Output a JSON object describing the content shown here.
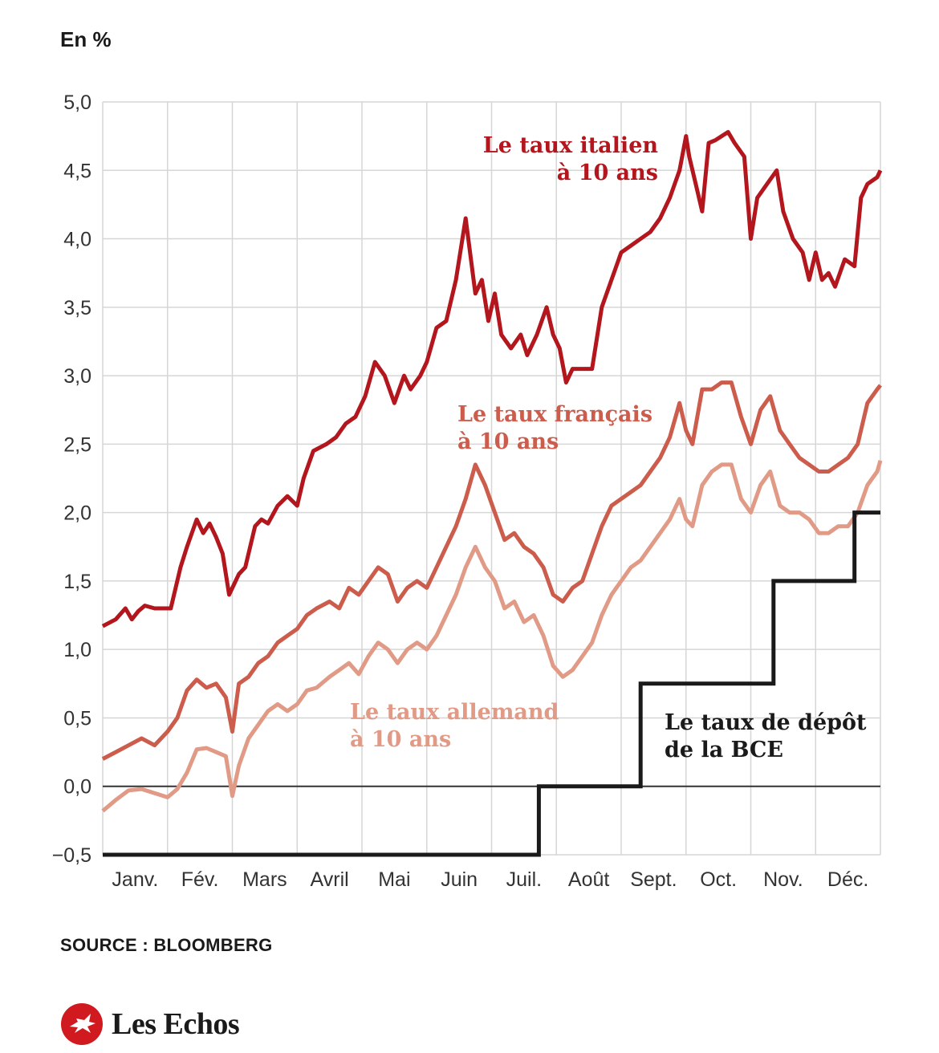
{
  "unit_label": "En %",
  "source": "SOURCE : BLOOMBERG",
  "brand": "Les Echos",
  "chart_data": {
    "type": "line",
    "ylim": [
      -0.5,
      5.0
    ],
    "y_ticks": [
      -0.5,
      0.0,
      0.5,
      1.0,
      1.5,
      2.0,
      2.5,
      3.0,
      3.5,
      4.0,
      4.5,
      5.0
    ],
    "y_tick_labels": [
      "−0,5",
      "0,0",
      "0,5",
      "1,0",
      "1,5",
      "2,0",
      "2,5",
      "3,0",
      "3,5",
      "4,0",
      "4,5",
      "5,0"
    ],
    "x_range": [
      0,
      12
    ],
    "x_tick_labels": [
      "Janv.",
      "Fév.",
      "Mars",
      "Avril",
      "Mai",
      "Juin",
      "Juil.",
      "Août",
      "Sept.",
      "Oct.",
      "Nov.",
      "Déc."
    ],
    "grid": true,
    "series": [
      {
        "name": "Le taux italien à 10 ans",
        "label_lines": [
          "Le taux italien",
          "à 10 ans"
        ],
        "color": "#b3161c",
        "x": [
          0.0,
          0.2,
          0.35,
          0.45,
          0.55,
          0.65,
          0.8,
          0.9,
          1.05,
          1.2,
          1.3,
          1.45,
          1.55,
          1.65,
          1.75,
          1.85,
          1.95,
          2.1,
          2.2,
          2.35,
          2.45,
          2.55,
          2.7,
          2.85,
          3.0,
          3.1,
          3.25,
          3.45,
          3.6,
          3.75,
          3.9,
          4.05,
          4.2,
          4.35,
          4.5,
          4.65,
          4.75,
          4.9,
          5.0,
          5.15,
          5.3,
          5.45,
          5.6,
          5.75,
          5.85,
          5.95,
          6.05,
          6.15,
          6.3,
          6.45,
          6.55,
          6.7,
          6.85,
          6.95,
          7.05,
          7.15,
          7.25,
          7.4,
          7.55,
          7.7,
          7.85,
          8.0,
          8.15,
          8.3,
          8.45,
          8.6,
          8.75,
          8.9,
          9.0,
          9.05,
          9.15,
          9.25,
          9.35,
          9.45,
          9.55,
          9.65,
          9.75,
          9.9,
          10.0,
          10.1,
          10.25,
          10.4,
          10.5,
          10.65,
          10.8,
          10.9,
          11.0,
          11.1,
          11.2,
          11.3,
          11.45,
          11.6,
          11.7,
          11.8,
          11.95,
          12.0
        ],
        "y": [
          1.17,
          1.22,
          1.3,
          1.22,
          1.28,
          1.32,
          1.3,
          1.3,
          1.3,
          1.6,
          1.75,
          1.95,
          1.85,
          1.92,
          1.82,
          1.7,
          1.4,
          1.55,
          1.6,
          1.9,
          1.95,
          1.92,
          2.05,
          2.12,
          2.05,
          2.25,
          2.45,
          2.5,
          2.55,
          2.65,
          2.7,
          2.85,
          3.1,
          3.0,
          2.8,
          3.0,
          2.9,
          3.0,
          3.1,
          3.35,
          3.4,
          3.7,
          4.15,
          3.6,
          3.7,
          3.4,
          3.6,
          3.3,
          3.2,
          3.3,
          3.15,
          3.3,
          3.5,
          3.3,
          3.2,
          2.95,
          3.05,
          3.05,
          3.05,
          3.5,
          3.7,
          3.9,
          3.95,
          4.0,
          4.05,
          4.15,
          4.3,
          4.5,
          4.75,
          4.6,
          4.4,
          4.2,
          4.7,
          4.72,
          4.75,
          4.78,
          4.7,
          4.6,
          4.0,
          4.3,
          4.4,
          4.5,
          4.2,
          4.0,
          3.9,
          3.7,
          3.9,
          3.7,
          3.75,
          3.65,
          3.85,
          3.8,
          4.3,
          4.4,
          4.45,
          4.5
        ]
      },
      {
        "name": "Le taux français à 10 ans",
        "label_lines": [
          "Le taux français",
          "à 10 ans"
        ],
        "color": "#cc5c4b",
        "x": [
          0.0,
          0.2,
          0.4,
          0.6,
          0.8,
          1.0,
          1.15,
          1.3,
          1.45,
          1.6,
          1.75,
          1.9,
          2.0,
          2.1,
          2.25,
          2.4,
          2.55,
          2.7,
          2.85,
          3.0,
          3.15,
          3.3,
          3.5,
          3.65,
          3.8,
          3.95,
          4.1,
          4.25,
          4.4,
          4.55,
          4.7,
          4.85,
          5.0,
          5.15,
          5.3,
          5.45,
          5.6,
          5.75,
          5.9,
          6.05,
          6.2,
          6.35,
          6.5,
          6.65,
          6.8,
          6.95,
          7.1,
          7.25,
          7.4,
          7.55,
          7.7,
          7.85,
          8.0,
          8.15,
          8.3,
          8.45,
          8.6,
          8.75,
          8.9,
          9.0,
          9.1,
          9.25,
          9.4,
          9.55,
          9.7,
          9.85,
          10.0,
          10.15,
          10.3,
          10.45,
          10.6,
          10.75,
          10.9,
          11.05,
          11.2,
          11.35,
          11.5,
          11.65,
          11.8,
          11.95,
          12.0
        ],
        "y": [
          0.2,
          0.25,
          0.3,
          0.35,
          0.3,
          0.4,
          0.5,
          0.7,
          0.78,
          0.72,
          0.75,
          0.65,
          0.4,
          0.75,
          0.8,
          0.9,
          0.95,
          1.05,
          1.1,
          1.15,
          1.25,
          1.3,
          1.35,
          1.3,
          1.45,
          1.4,
          1.5,
          1.6,
          1.55,
          1.35,
          1.45,
          1.5,
          1.45,
          1.6,
          1.75,
          1.9,
          2.1,
          2.35,
          2.2,
          2.0,
          1.8,
          1.85,
          1.75,
          1.7,
          1.6,
          1.4,
          1.35,
          1.45,
          1.5,
          1.7,
          1.9,
          2.05,
          2.1,
          2.15,
          2.2,
          2.3,
          2.4,
          2.55,
          2.8,
          2.6,
          2.5,
          2.9,
          2.9,
          2.95,
          2.95,
          2.7,
          2.5,
          2.75,
          2.85,
          2.6,
          2.5,
          2.4,
          2.35,
          2.3,
          2.3,
          2.35,
          2.4,
          2.5,
          2.8,
          2.9,
          2.93
        ]
      },
      {
        "name": "Le taux allemand à 10 ans",
        "label_lines": [
          "Le taux allemand",
          "à 10 ans"
        ],
        "color": "#e09a86",
        "x": [
          0.0,
          0.2,
          0.4,
          0.6,
          0.8,
          1.0,
          1.15,
          1.3,
          1.45,
          1.6,
          1.75,
          1.9,
          2.0,
          2.1,
          2.25,
          2.4,
          2.55,
          2.7,
          2.85,
          3.0,
          3.15,
          3.3,
          3.5,
          3.65,
          3.8,
          3.95,
          4.1,
          4.25,
          4.4,
          4.55,
          4.7,
          4.85,
          5.0,
          5.15,
          5.3,
          5.45,
          5.6,
          5.75,
          5.9,
          6.05,
          6.2,
          6.35,
          6.5,
          6.65,
          6.8,
          6.95,
          7.1,
          7.25,
          7.4,
          7.55,
          7.7,
          7.85,
          8.0,
          8.15,
          8.3,
          8.45,
          8.6,
          8.75,
          8.9,
          9.0,
          9.1,
          9.25,
          9.4,
          9.55,
          9.7,
          9.85,
          10.0,
          10.15,
          10.3,
          10.45,
          10.6,
          10.75,
          10.9,
          11.05,
          11.2,
          11.35,
          11.5,
          11.65,
          11.8,
          11.95,
          12.0
        ],
        "y": [
          -0.18,
          -0.1,
          -0.03,
          -0.02,
          -0.05,
          -0.08,
          -0.02,
          0.1,
          0.27,
          0.28,
          0.25,
          0.22,
          -0.07,
          0.15,
          0.35,
          0.45,
          0.55,
          0.6,
          0.55,
          0.6,
          0.7,
          0.72,
          0.8,
          0.85,
          0.9,
          0.82,
          0.95,
          1.05,
          1.0,
          0.9,
          1.0,
          1.05,
          1.0,
          1.1,
          1.25,
          1.4,
          1.6,
          1.75,
          1.6,
          1.5,
          1.3,
          1.35,
          1.2,
          1.25,
          1.1,
          0.88,
          0.8,
          0.85,
          0.95,
          1.05,
          1.25,
          1.4,
          1.5,
          1.6,
          1.65,
          1.75,
          1.85,
          1.95,
          2.1,
          1.95,
          1.9,
          2.2,
          2.3,
          2.35,
          2.35,
          2.1,
          2.0,
          2.2,
          2.3,
          2.05,
          2.0,
          2.0,
          1.95,
          1.85,
          1.85,
          1.9,
          1.9,
          2.0,
          2.2,
          2.3,
          2.38
        ]
      },
      {
        "name": "Le taux de dépôt de la BCE",
        "label_lines": [
          "Le taux de dépôt",
          "de la BCE"
        ],
        "color": "#1a1a1a",
        "step": true,
        "x": [
          0.0,
          6.73,
          6.73,
          8.3,
          8.3,
          10.35,
          10.35,
          11.6,
          11.6,
          12.0
        ],
        "y": [
          -0.5,
          -0.5,
          0.0,
          0.0,
          0.75,
          0.75,
          1.5,
          1.5,
          2.0,
          2.0
        ]
      }
    ]
  }
}
